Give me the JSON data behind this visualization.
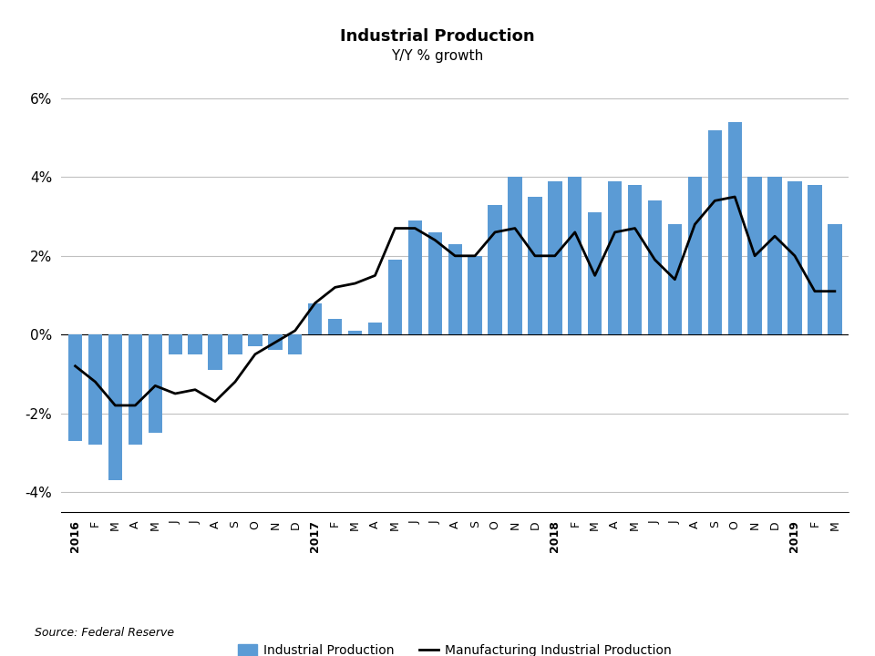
{
  "title": "Industrial Production",
  "subtitle": "Y/Y % growth",
  "source": "Source: Federal Reserve",
  "bar_color": "#5b9bd5",
  "line_color": "#000000",
  "ylim": [
    -0.045,
    0.065
  ],
  "yticks": [
    -0.04,
    -0.02,
    0.0,
    0.02,
    0.04,
    0.06
  ],
  "ytick_labels": [
    "-4%",
    "-2%",
    "0%",
    "2%",
    "4%",
    "6%"
  ],
  "legend_bar_label": "Industrial Production",
  "legend_line_label": "Manufacturing Industrial Production",
  "x_labels": [
    "2016",
    "F",
    "M",
    "A",
    "M",
    "J",
    "J",
    "A",
    "S",
    "O",
    "N",
    "D",
    "2017",
    "F",
    "M",
    "A",
    "M",
    "J",
    "J",
    "A",
    "S",
    "O",
    "N",
    "D",
    "2018",
    "F",
    "M",
    "A",
    "M",
    "J",
    "J",
    "A",
    "S",
    "O",
    "N",
    "D",
    "2019",
    "F",
    "M"
  ],
  "bar_values": [
    -0.027,
    -0.028,
    -0.037,
    -0.028,
    -0.025,
    -0.005,
    -0.005,
    -0.009,
    -0.005,
    -0.003,
    -0.004,
    -0.005,
    0.008,
    0.004,
    0.001,
    0.003,
    0.019,
    0.029,
    0.026,
    0.023,
    0.02,
    0.033,
    0.04,
    0.035,
    0.039,
    0.04,
    0.031,
    0.039,
    0.038,
    0.034,
    0.028,
    0.04,
    0.052,
    0.054,
    0.04,
    0.04,
    0.039,
    0.038,
    0.028
  ],
  "line_values": [
    -0.008,
    -0.012,
    -0.018,
    -0.018,
    -0.013,
    -0.015,
    -0.014,
    -0.017,
    -0.012,
    -0.005,
    -0.002,
    0.001,
    0.008,
    0.012,
    0.013,
    0.015,
    0.027,
    0.027,
    0.024,
    0.02,
    0.02,
    0.026,
    0.027,
    0.02,
    0.02,
    0.026,
    0.015,
    0.026,
    0.027,
    0.019,
    0.014,
    0.028,
    0.034,
    0.035,
    0.02,
    0.025,
    0.02,
    0.011,
    0.011
  ]
}
